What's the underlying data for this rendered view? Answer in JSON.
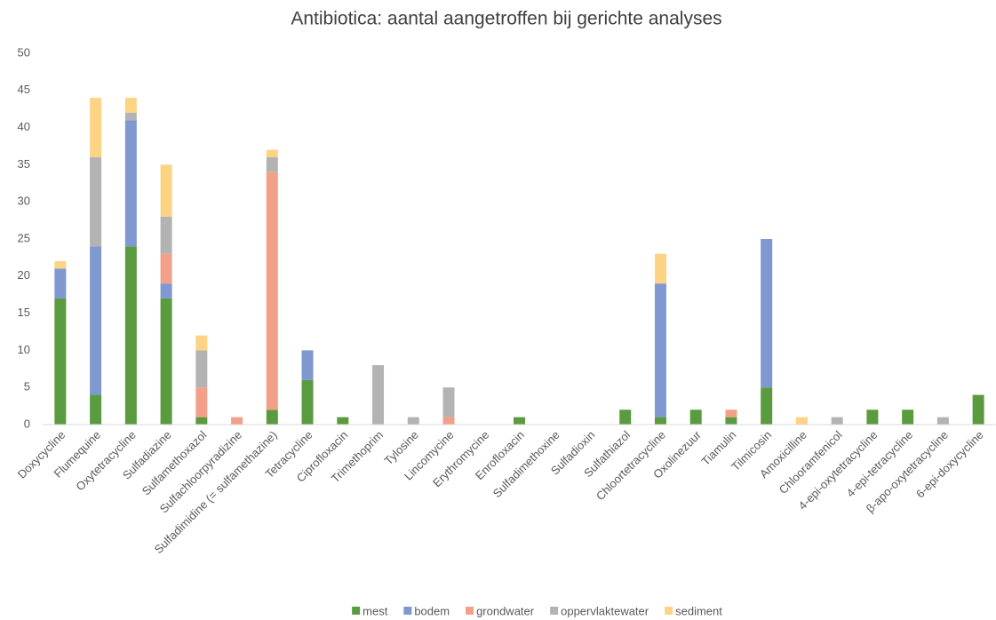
{
  "chart_data": {
    "type": "stacked_bar",
    "title": "Antibiotica: aantal aangetroffen bij gerichte analyses",
    "categories": [
      "Doxycycline",
      "Flumequine",
      "Oxytetracycline",
      "Sulfadiazine",
      "Sulfamethoxazol",
      "Sulfachloorpyradizine",
      "Sulfadimidine (= sulfamethazine)",
      "Tetracycline",
      "Ciprofloxacin",
      "Trimethoprim",
      "Tylosine",
      "Lincomycine",
      "Erythromycine",
      "Enrofloxacin",
      "Sulfadimethoxine",
      "Sulfadioxin",
      "Sulfathiazol",
      "Chloortetracycline",
      "Oxolinezuur",
      "Tiamulin",
      "Tilmicosin",
      "Amoxicilline",
      "Chlooramfenicol",
      "4-epi-oxytetracycline",
      "4-epi-tetracycline",
      "β-apo-oxytetracycline",
      "6-epi-doxycycline"
    ],
    "series": [
      {
        "name": "mest",
        "color": "#5b9b3f",
        "values": [
          17,
          4,
          24,
          17,
          1,
          0,
          2,
          6,
          1,
          0,
          0,
          0,
          0,
          1,
          0,
          0,
          2,
          1,
          2,
          1,
          5,
          0,
          0,
          2,
          2,
          0,
          4
        ]
      },
      {
        "name": "bodem",
        "color": "#7f98cf",
        "values": [
          4,
          20,
          17,
          2,
          0,
          0,
          0,
          4,
          0,
          0,
          0,
          0,
          0,
          0,
          0,
          0,
          0,
          18,
          0,
          0,
          20,
          0,
          0,
          0,
          0,
          0,
          0
        ]
      },
      {
        "name": "grondwater",
        "color": "#f2a08a",
        "values": [
          0,
          0,
          0,
          4,
          4,
          1,
          32,
          0,
          0,
          0,
          0,
          1,
          0,
          0,
          0,
          0,
          0,
          0,
          0,
          1,
          0,
          0,
          0,
          0,
          0,
          0,
          0
        ]
      },
      {
        "name": "oppervlaktewater",
        "color": "#b3b3b3",
        "values": [
          0,
          12,
          1,
          5,
          5,
          0,
          2,
          0,
          0,
          8,
          1,
          4,
          0,
          0,
          0,
          0,
          0,
          0,
          0,
          0,
          0,
          0,
          1,
          0,
          0,
          1,
          0
        ]
      },
      {
        "name": "sediment",
        "color": "#fdd384",
        "values": [
          1,
          8,
          2,
          7,
          2,
          0,
          1,
          0,
          0,
          0,
          0,
          0,
          0,
          0,
          0,
          0,
          0,
          4,
          0,
          0,
          0,
          1,
          0,
          0,
          0,
          0,
          0
        ]
      }
    ],
    "ylim": [
      0,
      50
    ],
    "yticks": [
      0,
      5,
      10,
      15,
      20,
      25,
      30,
      35,
      40,
      45,
      50
    ],
    "grid": false,
    "legend": "bottom"
  }
}
